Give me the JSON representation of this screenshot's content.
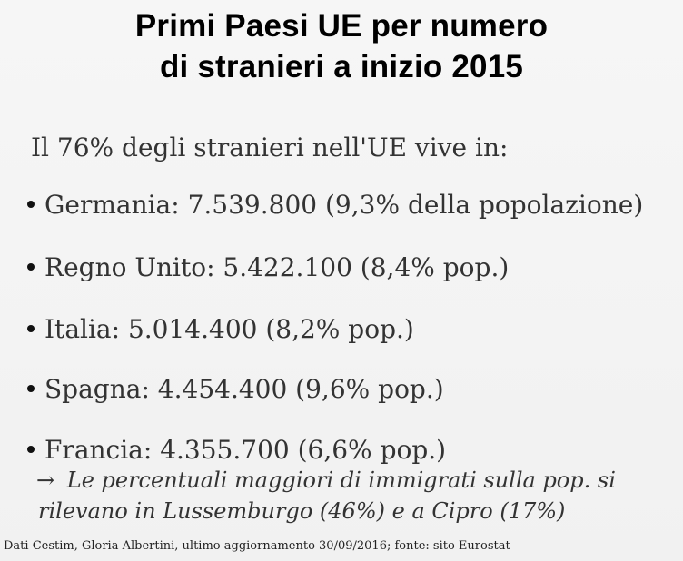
{
  "slide": {
    "title_line1": "Primi Paesi UE per numero",
    "title_line2": "di stranieri a inizio 2015",
    "intro": "Il 76% degli stranieri nell'UE vive in:",
    "bullets": [
      {
        "text": "Germania: 7.539.800 (9,3% della popolazione)"
      },
      {
        "text": "Regno Unito: 5.422.100 (8,4% pop.)"
      },
      {
        "text": "Italia: 5.014.400 (8,2% pop.)"
      },
      {
        "text": "Spagna: 4.454.400 (9,6% pop.)"
      },
      {
        "text": "Francia: 4.355.700 (6,6% pop.)"
      }
    ],
    "note_arrow": "→",
    "note_line1": "Le percentuali maggiori di immigrati sulla pop. si",
    "note_line2": "rilevano in Lussemburgo (46%) e a Cipro (17%)",
    "footer": "Dati Cestim, Gloria Albertini, ultimo aggiornamento 30/09/2016; fonte: sito Eurostat"
  }
}
